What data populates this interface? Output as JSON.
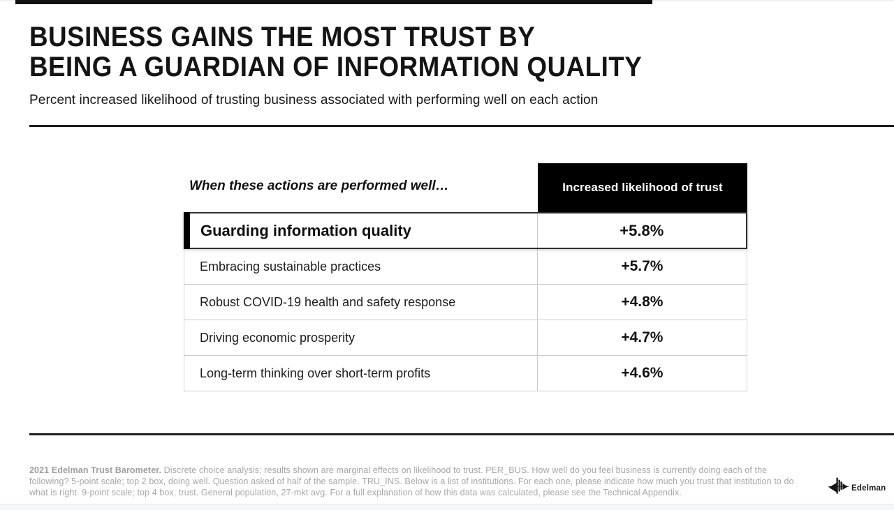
{
  "slide": {
    "title_line1": "BUSINESS GAINS THE MOST TRUST BY",
    "title_line2": "BEING A GUARDIAN OF INFORMATION QUALITY",
    "subtitle": "Percent increased likelihood of trusting business associated with performing well on each action",
    "footnote": {
      "bold": "2021 Edelman Trust Barometer.",
      "text": " Discrete choice analysis; results shown are marginal effects on likelihood to trust. PER_BUS. How well do you feel business is currently doing each of the following? 5-point scale; top 2 box, doing well. Question asked of half of the sample. TRU_INS. Below is a list of institutions. For each one, please indicate how much you trust that institution to do what is right. 9-point scale; top 4 box, trust. General population, 27-mkt avg. For a full explanation of how this data was calculated, please see the Technical Appendix."
    },
    "logo_text": "Edelman",
    "colors": {
      "header_box": "#000000",
      "highlight_border": "#2e2e2e",
      "row_divider": "#cccccc",
      "footnote_gray": "#a7a7a7"
    }
  },
  "table": {
    "left_header": "When these actions are performed well…",
    "value_header": "Increased likelihood of trust",
    "rows": [
      {
        "action": "Guarding information quality",
        "value": "+5.8%",
        "highlighted": true
      },
      {
        "action": "Embracing sustainable practices",
        "value": "+5.7%",
        "highlighted": false
      },
      {
        "action": "Robust COVID-19 health and safety response",
        "value": "+4.8%",
        "highlighted": false
      },
      {
        "action": "Driving economic prosperity",
        "value": "+4.7%",
        "highlighted": false
      },
      {
        "action": "Long-term thinking over short-term profits",
        "value": "+4.6%",
        "highlighted": false
      }
    ]
  },
  "chart_data": {
    "type": "table",
    "title": "BUSINESS GAINS THE MOST TRUST BY BEING A GUARDIAN OF INFORMATION QUALITY",
    "subtitle": "Percent increased likelihood of trusting business associated with performing well on each action",
    "columns": [
      "When these actions are performed well…",
      "Increased likelihood of trust"
    ],
    "categories": [
      "Guarding information quality",
      "Embracing sustainable practices",
      "Robust COVID-19 health and safety response",
      "Driving economic prosperity",
      "Long-term thinking over short-term profits"
    ],
    "values": [
      5.8,
      5.7,
      4.8,
      4.7,
      4.6
    ],
    "value_labels": [
      "+5.8%",
      "+5.7%",
      "+4.8%",
      "+4.7%",
      "+4.6%"
    ],
    "highlighted_category": "Guarding information quality",
    "source_note": "2021 Edelman Trust Barometer"
  }
}
